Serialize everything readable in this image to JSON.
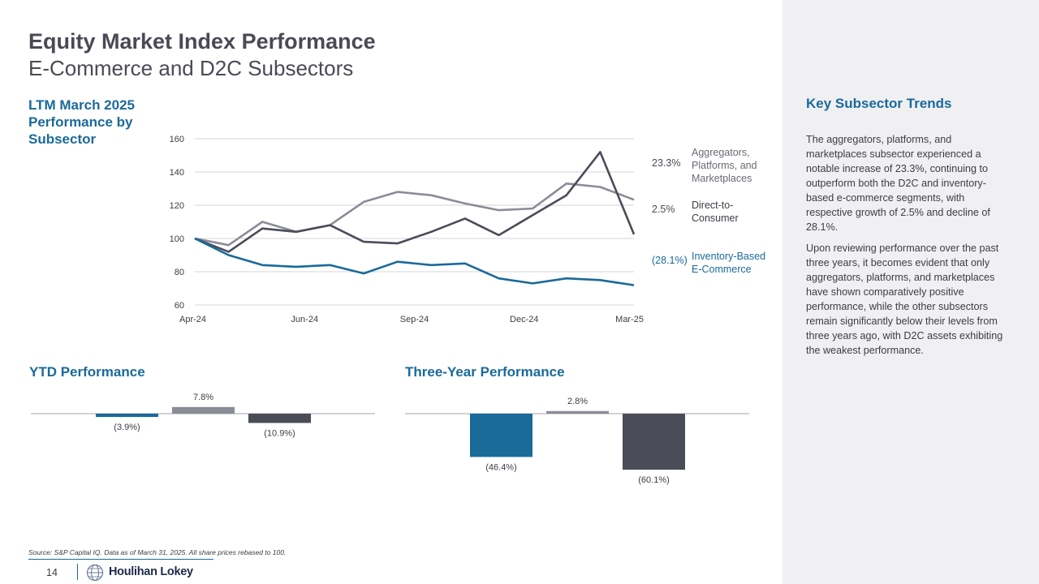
{
  "header": {
    "title": "Equity Market Index Performance",
    "subtitle": "E-Commerce and D2C Subsectors"
  },
  "ltm_heading": "LTM March 2025 Performance by Subsector",
  "ytd_heading": "YTD Performance",
  "three_year_heading": "Three-Year Performance",
  "sidebar": {
    "heading": "Key Subsector Trends",
    "paragraph1": "The aggregators, platforms, and marketplaces subsector experienced a notable increase of 23.3%, continuing to outperform both the D2C and inventory-based e-commerce segments, with respective growth of 2.5% and decline of 28.1%.",
    "paragraph2": "Upon reviewing performance over the past three years, it becomes evident that only aggregators, platforms, and marketplaces have shown comparatively positive performance, while the other subsectors remain significantly below their levels from three years ago, with D2C assets exhibiting the weakest performance."
  },
  "footer": {
    "source": "Source: S&P Capital IQ. Data as of March 31, 2025. All share prices rebased to 100.",
    "page_number": "14",
    "logo_text": "Houlihan Lokey",
    "logo_icon": "globe-icon"
  },
  "chart_data": [
    {
      "type": "line",
      "title": "",
      "xlabel": "",
      "ylabel": "",
      "ylim": [
        60,
        160
      ],
      "yticks": [
        "160",
        "140",
        "120",
        "100",
        "80",
        "60"
      ],
      "xticks": [
        "Apr-24",
        "Jun-24",
        "Sep-24",
        "Dec-24",
        "Mar-25"
      ],
      "grid": true,
      "legend": "right",
      "x": [
        0,
        4,
        8,
        12,
        16,
        20,
        24,
        28,
        32,
        36,
        40,
        44,
        48,
        52
      ],
      "series": [
        {
          "name": "Aggregators, Platforms, and Marketplaces",
          "end_label": "23.3%",
          "color": "#8a8d96",
          "values": [
            100,
            96,
            110,
            104,
            108,
            122,
            128,
            126,
            121,
            117,
            118,
            133,
            131,
            123.3
          ]
        },
        {
          "name": "Direct-to-Consumer",
          "end_label": "2.5%",
          "color": "#4a4d58",
          "values": [
            100,
            92,
            106,
            104,
            108,
            98,
            97,
            104,
            112,
            102,
            114,
            126,
            152,
            102.5
          ]
        },
        {
          "name": "Inventory-Based E-Commerce",
          "end_label": "(28.1%)",
          "color": "#1a6a9a",
          "values": [
            100,
            90,
            84,
            83,
            84,
            79,
            86,
            84,
            85,
            76,
            73,
            76,
            75,
            71.9
          ]
        }
      ]
    },
    {
      "type": "bar",
      "title": "YTD Performance",
      "categories": [
        "Inventory-Based E-Commerce",
        "Aggregators, Platforms, and Marketplaces",
        "Direct-to-Consumer"
      ],
      "values": [
        -3.9,
        7.8,
        -10.9
      ],
      "labels": [
        "(3.9%)",
        "7.8%",
        "(10.9%)"
      ],
      "colors": [
        "#1a6a9a",
        "#8a8d96",
        "#4a4d58"
      ]
    },
    {
      "type": "bar",
      "title": "Three-Year Performance",
      "categories": [
        "Inventory-Based E-Commerce",
        "Aggregators, Platforms, and Marketplaces",
        "Direct-to-Consumer"
      ],
      "values": [
        -46.4,
        2.8,
        -60.1
      ],
      "labels": [
        "(46.4%)",
        "2.8%",
        "(60.1%)"
      ],
      "colors": [
        "#1a6a9a",
        "#8a8d96",
        "#4a4d58"
      ]
    }
  ]
}
